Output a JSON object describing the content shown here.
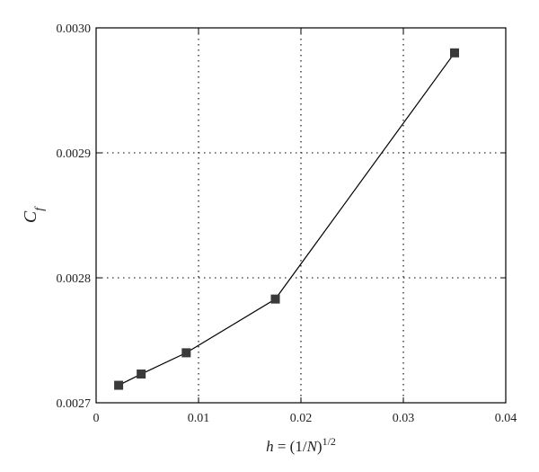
{
  "chart_data": {
    "type": "line",
    "title": "",
    "xlabel": "h = (1/N)^1/2",
    "ylabel": "C_f",
    "xlabel_parts": {
      "var": "h",
      "eq": " = (1/",
      "var2": "N",
      "close": ")",
      "exp": "1/2"
    },
    "ylabel_parts": {
      "base": "C",
      "sub": "f"
    },
    "xlim": [
      0,
      0.04
    ],
    "ylim": [
      0.0027,
      0.003
    ],
    "xticks": [
      0,
      0.01,
      0.02,
      0.03,
      0.04
    ],
    "xtick_labels": [
      "0",
      "0.01",
      "0.02",
      "0.03",
      "0.04"
    ],
    "yticks": [
      0.0027,
      0.0028,
      0.0029,
      0.003
    ],
    "ytick_labels": [
      "0.0027",
      "0.0028",
      "0.0029",
      "0.0030"
    ],
    "grid": "dotted",
    "legend": "none",
    "series": [
      {
        "marker": "square",
        "color": "#000000",
        "marker_color": "#3a3a3a",
        "x": [
          0.0022,
          0.0044,
          0.0088,
          0.0175,
          0.035
        ],
        "y": [
          0.002714,
          0.002723,
          0.00274,
          0.002783,
          0.00298
        ]
      }
    ]
  }
}
